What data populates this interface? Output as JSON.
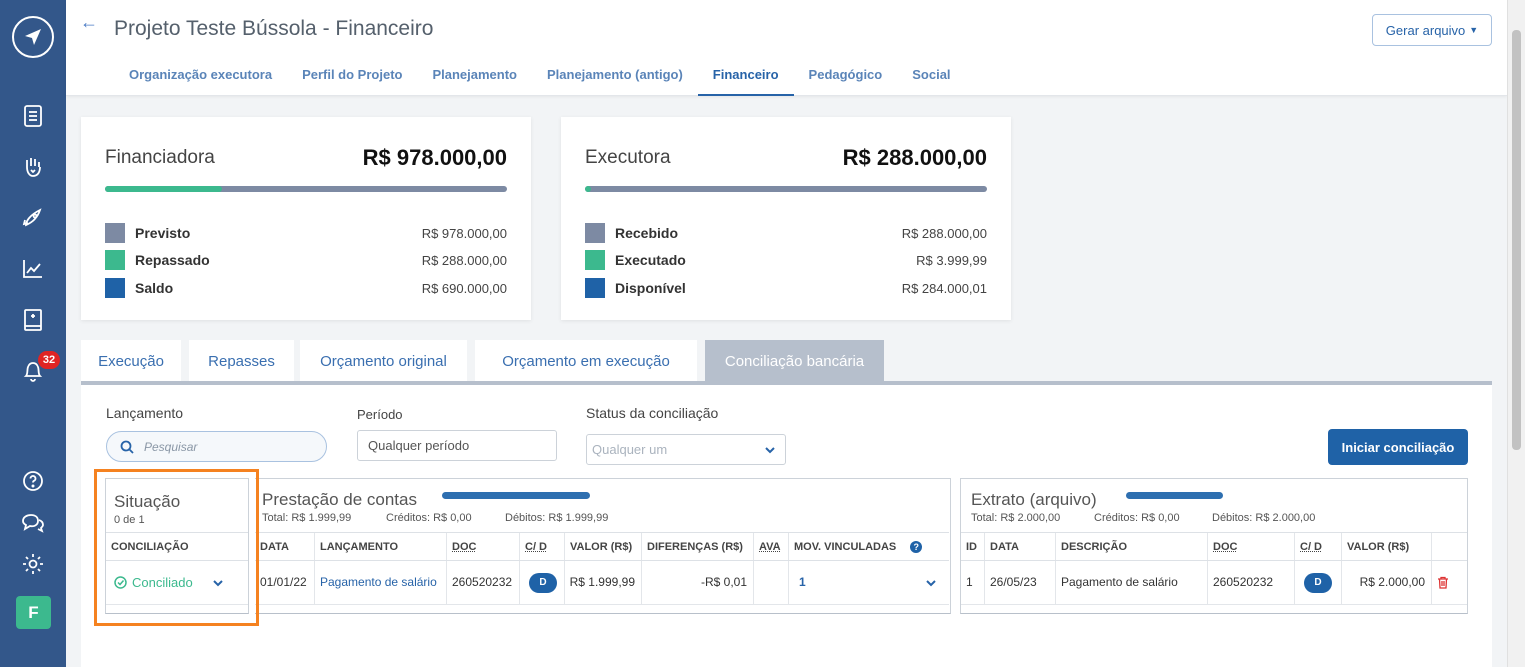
{
  "sidebar": {
    "badge_count": "32",
    "avatar_initial": "F"
  },
  "header": {
    "title": "Projeto Teste Bússola - Financeiro",
    "generate_button": "Gerar arquivo",
    "tabs": [
      "Organização executora",
      "Perfil do Projeto",
      "Planejamento",
      "Planejamento (antigo)",
      "Financeiro",
      "Pedagógico",
      "Social"
    ]
  },
  "financiadora": {
    "title": "Financiadora",
    "total": "R$ 978.000,00",
    "bar_fill_fraction": 0.29,
    "items": [
      {
        "label": "Previsto",
        "value": "R$ 978.000,00",
        "color": "#7d8aa3"
      },
      {
        "label": "Repassado",
        "value": "R$ 288.000,00",
        "color": "#3cb98e"
      },
      {
        "label": "Saldo",
        "value": "R$ 690.000,00",
        "color": "#1f62a7"
      }
    ]
  },
  "executora": {
    "title": "Executora",
    "total": "R$ 288.000,00",
    "bar_fill_fraction": 0.014,
    "items": [
      {
        "label": "Recebido",
        "value": "R$ 288.000,00",
        "color": "#7d8aa3"
      },
      {
        "label": "Executado",
        "value": "R$ 3.999,99",
        "color": "#3cb98e"
      },
      {
        "label": "Disponível",
        "value": "R$ 284.000,01",
        "color": "#1f62a7"
      }
    ]
  },
  "section_tabs": [
    "Execução",
    "Repasses",
    "Orçamento original",
    "Orçamento em execução",
    "Conciliação bancária"
  ],
  "filters": {
    "lancamento_label": "Lançamento",
    "search_placeholder": "Pesquisar",
    "periodo_label": "Período",
    "periodo_value": "Qualquer período",
    "status_label": "Status da conciliação",
    "status_value": "Qualquer um",
    "start_button": "Iniciar conciliação"
  },
  "situacao": {
    "title": "Situação",
    "count": "0 de 1",
    "header": "CONCILIAÇÃO",
    "value": "Conciliado"
  },
  "prestacao": {
    "title": "Prestação de contas",
    "total": "Total: R$ 1.999,99",
    "creditos": "Créditos: R$ 0,00",
    "debitos": "Débitos: R$ 1.999,99",
    "headers": [
      "DATA",
      "LANÇAMENTO",
      "DOC",
      "C/ D",
      "VALOR (R$)",
      "DIFERENÇAS (R$)",
      "AVA",
      "MOV. VINCULADAS"
    ],
    "row": {
      "data": "01/01/22",
      "lancamento": "Pagamento de salário",
      "doc": "260520232",
      "cd": "D",
      "valor": "R$ 1.999,99",
      "diferencas": "-R$ 0,01",
      "mov": "1"
    }
  },
  "extrato": {
    "title": "Extrato (arquivo)",
    "total": "Total: R$ 2.000,00",
    "creditos": "Créditos: R$ 0,00",
    "debitos": "Débitos: R$ 2.000,00",
    "headers": [
      "ID",
      "DATA",
      "DESCRIÇÃO",
      "DOC",
      "C/ D",
      "VALOR (R$)"
    ],
    "row": {
      "id": "1",
      "data": "26/05/23",
      "descricao": "Pagamento de salário",
      "doc": "260520232",
      "cd": "D",
      "valor": "R$ 2.000,00"
    }
  }
}
